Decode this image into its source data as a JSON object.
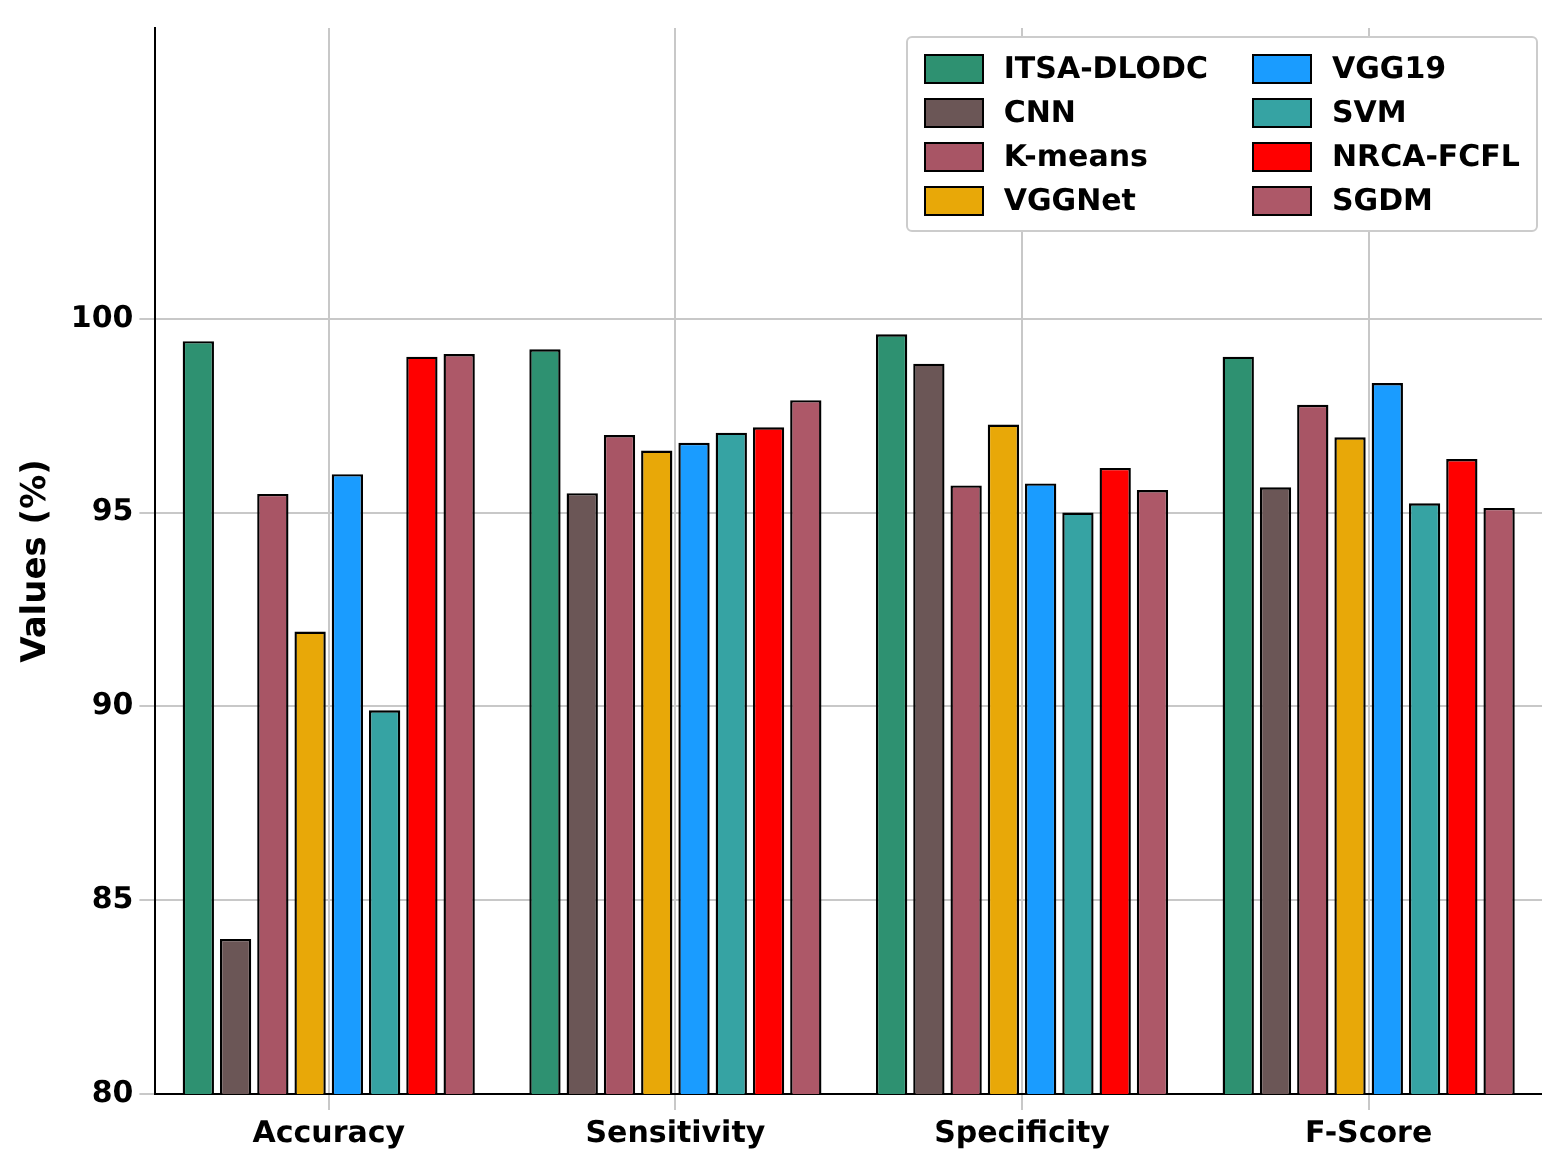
{
  "chart_data": {
    "type": "bar",
    "ylabel": "Values (%)",
    "categories": [
      "Accuracy",
      "Sensitivity",
      "Specificity",
      "F-Score"
    ],
    "series": [
      {
        "name": "ITSA-DLODC",
        "color": "#2e9171",
        "values": [
          99.42,
          99.21,
          99.6,
          99.02
        ]
      },
      {
        "name": "CNN",
        "color": "#6b5656",
        "values": [
          84.0,
          95.5,
          98.84,
          95.65
        ]
      },
      {
        "name": "K-means",
        "color": "#a85565",
        "values": [
          95.48,
          97.0,
          95.7,
          97.78
        ]
      },
      {
        "name": "VGGNet",
        "color": "#e8a808",
        "values": [
          91.93,
          96.6,
          97.27,
          96.94
        ]
      },
      {
        "name": "VGG19",
        "color": "#1a9cff",
        "values": [
          95.99,
          96.8,
          95.75,
          98.34
        ]
      },
      {
        "name": "SVM",
        "color": "#36a3a3",
        "values": [
          89.9,
          97.06,
          95.0,
          95.24
        ]
      },
      {
        "name": "NRCA-FCFL",
        "color": "#ff0000",
        "values": [
          99.02,
          97.2,
          96.15,
          96.38
        ]
      },
      {
        "name": "SGDM",
        "color": "#ad5868",
        "values": [
          99.09,
          97.9,
          95.58,
          95.12
        ]
      }
    ],
    "ylim": [
      80,
      107.5
    ],
    "yticks": [
      80,
      85,
      90,
      95,
      100
    ],
    "grid": true,
    "legend": "top right"
  }
}
